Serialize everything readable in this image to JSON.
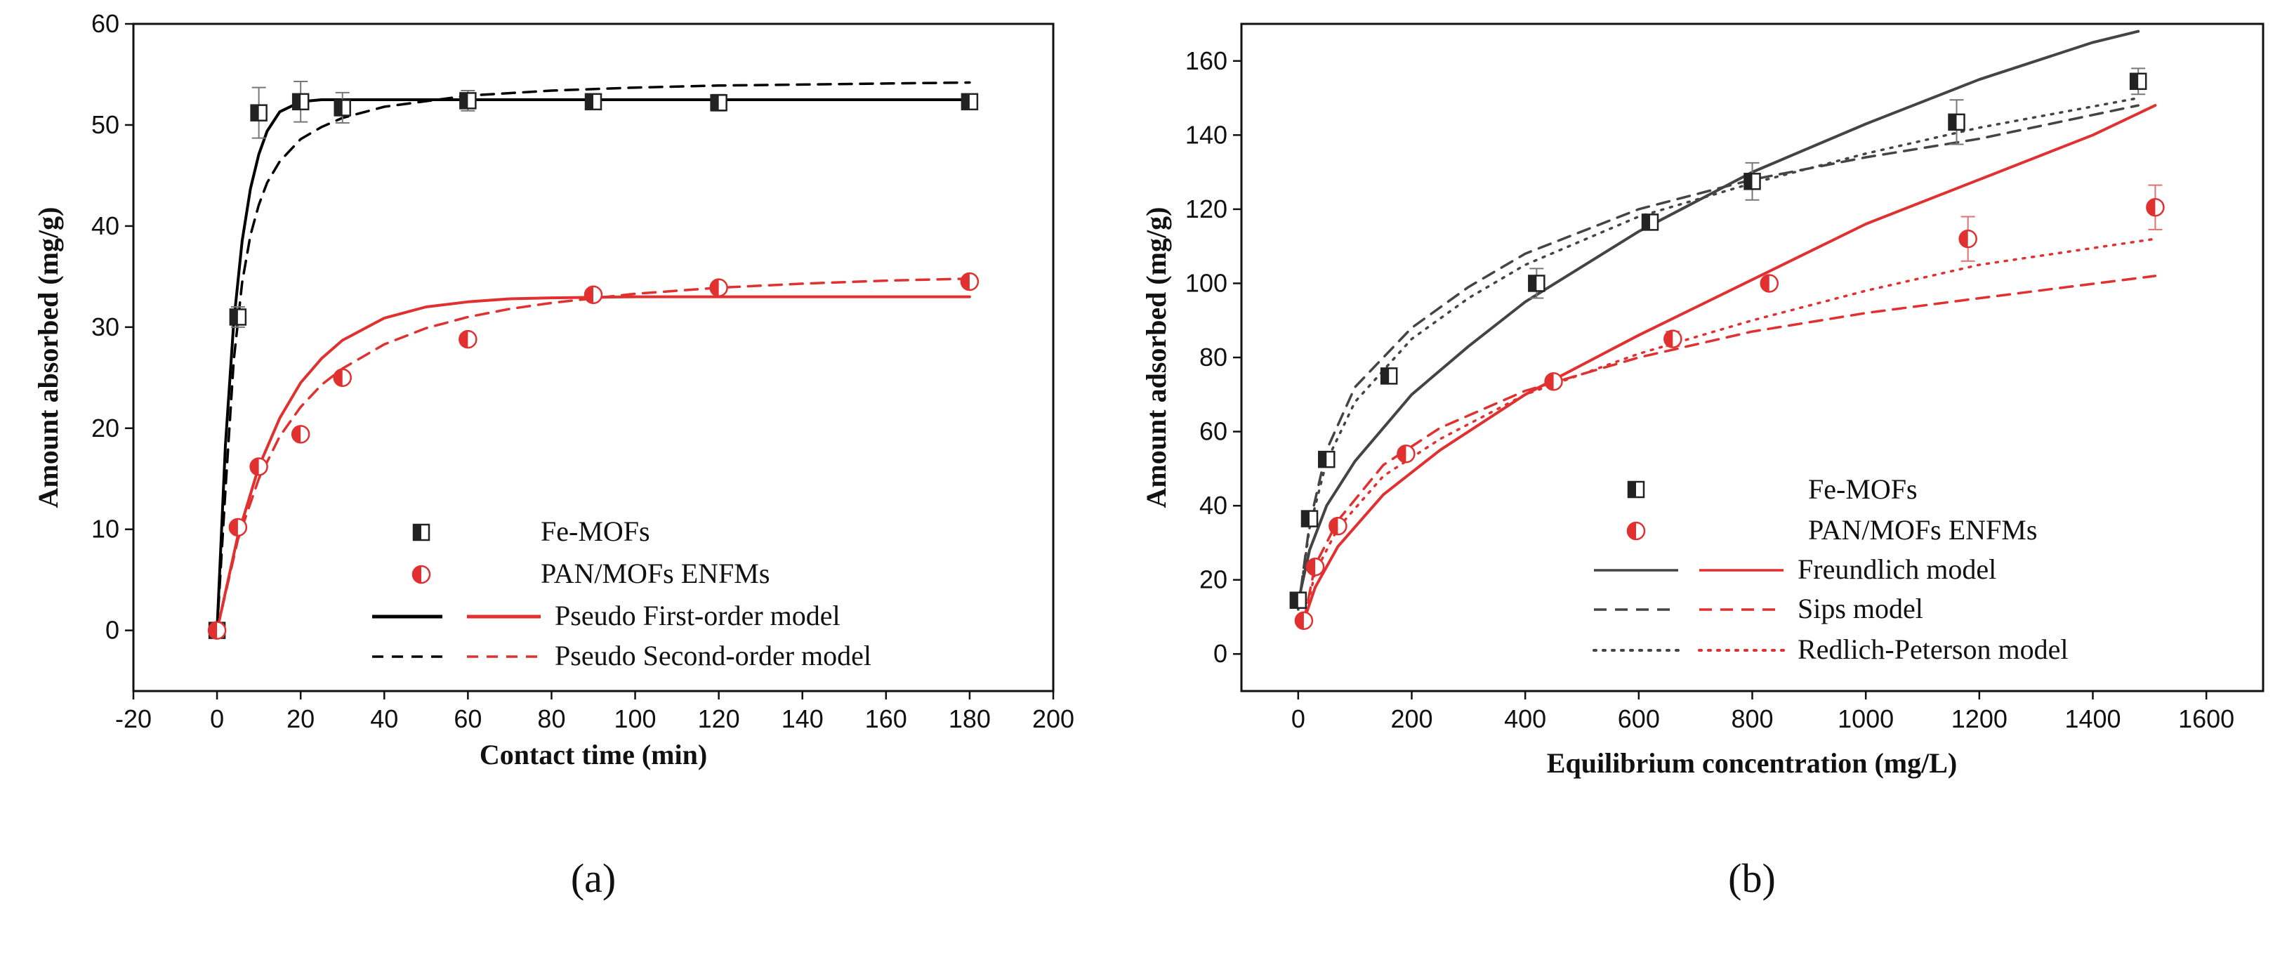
{
  "chart_data": [
    {
      "type": "scatter",
      "caption": "(a)",
      "xlabel": "Contact time (min)",
      "ylabel": "Amount absorbed (mg/g)",
      "xlim": [
        -20,
        200
      ],
      "ylim": [
        -6,
        60
      ],
      "xticks": [
        "-20",
        "0",
        "20",
        "40",
        "60",
        "80",
        "100",
        "120",
        "140",
        "160",
        "180",
        "200"
      ],
      "yticks": [
        "0",
        "10",
        "20",
        "30",
        "40",
        "50",
        "60"
      ],
      "series": [
        {
          "name": "Fe-MOFs",
          "color": "#000000",
          "x": [
            0,
            5,
            10,
            20,
            30,
            60,
            90,
            120,
            180
          ],
          "y": [
            0,
            31,
            51.2,
            52.3,
            51.7,
            52.4,
            52.3,
            52.2,
            52.3
          ],
          "err": [
            0,
            1.0,
            2.5,
            2.0,
            1.5,
            1.0,
            0.5,
            0.8,
            0.5
          ]
        },
        {
          "name": "PAN/MOFs ENFMs",
          "color": "#e03030",
          "x": [
            0,
            5,
            10,
            20,
            30,
            60,
            90,
            120,
            180
          ],
          "y": [
            0,
            10.2,
            16.2,
            19.4,
            25.0,
            28.8,
            33.2,
            33.9,
            34.5
          ],
          "err": [
            0,
            0,
            0,
            0,
            0,
            0,
            0,
            0,
            0
          ]
        }
      ],
      "models": [
        {
          "name": "Pseudo First-order model",
          "style": "solid",
          "series": "Fe-MOFs",
          "color": "#000000",
          "x": [
            0,
            2,
            4,
            6,
            8,
            10,
            12,
            15,
            20,
            25,
            30,
            40,
            60,
            80,
            100,
            120,
            140,
            160,
            180
          ],
          "y": [
            0,
            18.3,
            30.5,
            38.5,
            43.7,
            47.1,
            49.4,
            51.3,
            52.3,
            52.5,
            52.5,
            52.5,
            52.5,
            52.5,
            52.5,
            52.5,
            52.5,
            52.5,
            52.5
          ]
        },
        {
          "name": "Pseudo First-order model",
          "style": "solid",
          "series": "PAN/MOFs ENFMs",
          "color": "#e03030",
          "x": [
            0,
            5,
            10,
            15,
            20,
            25,
            30,
            40,
            50,
            60,
            70,
            80,
            100,
            120,
            140,
            160,
            180
          ],
          "y": [
            0,
            9.4,
            16.2,
            21.0,
            24.5,
            26.9,
            28.7,
            30.9,
            32.0,
            32.5,
            32.8,
            32.9,
            33.0,
            33.0,
            33.0,
            33.0,
            33.0
          ]
        },
        {
          "name": "Pseudo Second-order model",
          "style": "dashed",
          "series": "Fe-MOFs",
          "color": "#000000",
          "x": [
            0,
            2,
            4,
            6,
            8,
            10,
            12,
            15,
            20,
            25,
            30,
            40,
            60,
            80,
            100,
            120,
            140,
            160,
            180
          ],
          "y": [
            0,
            13.8,
            26.7,
            34.4,
            39.1,
            42.1,
            44.3,
            46.4,
            48.6,
            49.8,
            50.7,
            51.8,
            52.9,
            53.4,
            53.7,
            53.9,
            54.0,
            54.1,
            54.2
          ]
        },
        {
          "name": "Pseudo Second-order model",
          "style": "dashed",
          "series": "PAN/MOFs ENFMs",
          "color": "#e03030",
          "x": [
            0,
            5,
            10,
            15,
            20,
            25,
            30,
            40,
            50,
            60,
            70,
            80,
            100,
            120,
            140,
            160,
            180
          ],
          "y": [
            0,
            9.0,
            15.0,
            19.2,
            22.1,
            24.3,
            25.9,
            28.3,
            29.9,
            31.0,
            31.8,
            32.4,
            33.3,
            33.9,
            34.3,
            34.6,
            34.8
          ]
        }
      ],
      "legend": {
        "position": "bottom-right",
        "entries": [
          "Fe-MOFs",
          "PAN/MOFs ENFMs",
          "Pseudo First-order model",
          "Pseudo Second-order model"
        ]
      }
    },
    {
      "type": "scatter",
      "caption": "(b)",
      "xlabel": "Equilibrium concentration (mg/L)",
      "ylabel": "Amount adsorbed (mg/g)",
      "xlim": [
        -100,
        1700
      ],
      "ylim": [
        -10,
        170
      ],
      "xticks": [
        "0",
        "200",
        "400",
        "600",
        "800",
        "1000",
        "1200",
        "1400",
        "1600"
      ],
      "yticks": [
        "0",
        "20",
        "40",
        "60",
        "80",
        "100",
        "120",
        "140",
        "160"
      ],
      "series": [
        {
          "name": "Fe-MOFs",
          "color": "#000000",
          "x": [
            0,
            20,
            50,
            160,
            420,
            620,
            800,
            1160,
            1480
          ],
          "y": [
            14.5,
            36.5,
            52.5,
            75,
            100,
            116.5,
            127.5,
            143.5,
            154.5
          ],
          "err": [
            0,
            1.5,
            1.5,
            2,
            4,
            2,
            5,
            6,
            3.5
          ]
        },
        {
          "name": "PAN/MOFs ENFMs",
          "color": "#e03030",
          "x": [
            10,
            30,
            70,
            190,
            450,
            660,
            830,
            1180,
            1510
          ],
          "y": [
            9,
            23.5,
            34.5,
            54,
            73.5,
            85,
            100,
            112,
            120.5
          ],
          "err": [
            0,
            0,
            0,
            0,
            0,
            2,
            0,
            6,
            6
          ]
        }
      ],
      "models": [
        {
          "name": "Freundlich model",
          "style": "solid",
          "series": "Fe-MOFs",
          "color": "#444444",
          "x": [
            0,
            20,
            50,
            100,
            200,
            300,
            400,
            600,
            800,
            1000,
            1200,
            1400,
            1480
          ],
          "y": [
            14,
            28,
            40,
            52,
            70,
            83,
            95,
            114,
            130,
            143,
            155,
            165,
            168
          ]
        },
        {
          "name": "Freundlich model",
          "style": "solid",
          "series": "PAN/MOFs ENFMs",
          "color": "#e03030",
          "x": [
            10,
            30,
            70,
            150,
            250,
            400,
            600,
            800,
            1000,
            1200,
            1400,
            1510
          ],
          "y": [
            9,
            18,
            29,
            43,
            55,
            70,
            86,
            101,
            116,
            128,
            140,
            148
          ]
        },
        {
          "name": "Sips model",
          "style": "dashed",
          "series": "Fe-MOFs",
          "color": "#444444",
          "x": [
            0,
            20,
            50,
            100,
            200,
            300,
            400,
            600,
            800,
            1000,
            1200,
            1480
          ],
          "y": [
            12,
            35,
            55,
            72,
            88,
            99,
            108,
            120,
            128,
            134,
            139,
            148
          ]
        },
        {
          "name": "Sips model",
          "style": "dashed",
          "series": "PAN/MOFs ENFMs",
          "color": "#e03030",
          "x": [
            10,
            30,
            70,
            150,
            250,
            400,
            600,
            800,
            1000,
            1200,
            1510
          ],
          "y": [
            9,
            24,
            36,
            51,
            61,
            71,
            80,
            87,
            92,
            96,
            102
          ]
        },
        {
          "name": "Redlich-Peterson model",
          "style": "dotted",
          "series": "Fe-MOFs",
          "color": "#444444",
          "x": [
            0,
            20,
            50,
            100,
            200,
            300,
            400,
            600,
            800,
            1000,
            1200,
            1480
          ],
          "y": [
            12,
            34,
            52,
            68,
            85,
            96,
            105,
            118,
            127,
            135,
            142,
            150
          ]
        },
        {
          "name": "Redlich-Peterson model",
          "style": "dotted",
          "series": "PAN/MOFs ENFMs",
          "color": "#e03030",
          "x": [
            10,
            30,
            70,
            150,
            250,
            400,
            600,
            800,
            1000,
            1200,
            1510
          ],
          "y": [
            9,
            22,
            34,
            48,
            58,
            70,
            81,
            90,
            98,
            105,
            112
          ]
        }
      ],
      "legend": {
        "position": "bottom-right",
        "entries": [
          "Fe-MOFs",
          "PAN/MOFs ENFMs",
          "Freundlich model",
          "Sips model",
          "Redlich-Peterson model"
        ]
      }
    }
  ]
}
